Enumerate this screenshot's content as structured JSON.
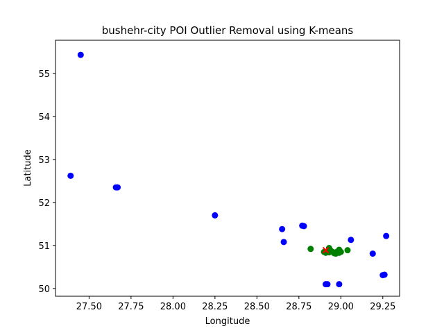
{
  "chart_data": {
    "type": "scatter",
    "title": "bushehr-city POI Outlier Removal using K-means",
    "xlabel": "Longitude",
    "ylabel": "Latitude",
    "xlim": [
      27.3,
      29.35
    ],
    "ylim": [
      49.82,
      55.77
    ],
    "grid": false,
    "x_ticks": [
      27.5,
      27.75,
      28.0,
      28.25,
      28.5,
      28.75,
      29.0,
      29.25
    ],
    "x_tick_labels": [
      "27.50",
      "27.75",
      "28.00",
      "28.25",
      "28.50",
      "28.75",
      "29.00",
      "29.25"
    ],
    "y_ticks": [
      50,
      51,
      52,
      53,
      54,
      55
    ],
    "y_tick_labels": [
      "50",
      "51",
      "52",
      "53",
      "54",
      "55"
    ],
    "series": [
      {
        "color": "#0000ff",
        "marker": "circle",
        "points": [
          [
            27.45,
            55.43
          ],
          [
            27.39,
            52.62
          ],
          [
            27.66,
            52.35
          ],
          [
            27.67,
            52.35
          ],
          [
            28.25,
            51.7
          ],
          [
            28.65,
            51.38
          ],
          [
            28.66,
            51.08
          ],
          [
            28.77,
            51.46
          ],
          [
            28.78,
            51.45
          ],
          [
            29.06,
            51.13
          ],
          [
            29.27,
            51.22
          ],
          [
            29.19,
            50.81
          ],
          [
            29.26,
            50.32
          ],
          [
            29.25,
            50.31
          ],
          [
            28.91,
            50.1
          ],
          [
            28.92,
            50.1
          ],
          [
            28.99,
            50.1
          ]
        ]
      },
      {
        "color": "#008000",
        "marker": "circle",
        "points": [
          [
            28.82,
            50.92
          ],
          [
            28.9,
            50.85
          ],
          [
            28.91,
            50.83
          ],
          [
            28.92,
            50.86
          ],
          [
            28.93,
            50.84
          ],
          [
            28.94,
            50.88
          ],
          [
            28.95,
            50.85
          ],
          [
            28.96,
            50.82
          ],
          [
            28.97,
            50.84
          ],
          [
            28.98,
            50.86
          ],
          [
            28.99,
            50.83
          ],
          [
            28.99,
            50.9
          ],
          [
            29.0,
            50.85
          ],
          [
            28.97,
            50.81
          ],
          [
            29.04,
            50.89
          ],
          [
            28.93,
            50.94
          ]
        ]
      },
      {
        "color": "#ff0000",
        "marker": "x",
        "points": [
          [
            28.91,
            50.89
          ]
        ]
      }
    ]
  }
}
